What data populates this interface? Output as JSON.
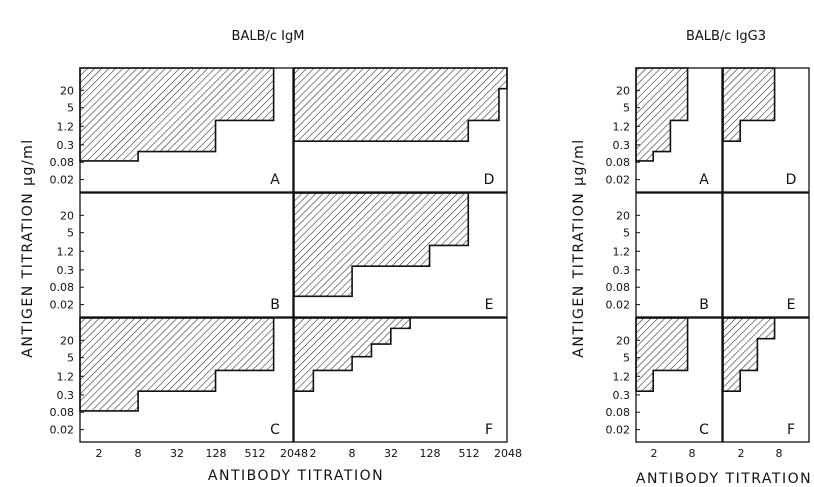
{
  "chart_data": [
    {
      "type": "step-area-grid",
      "title": "BALB/c IgM",
      "xlabel": "ANTIBODY TITRATION",
      "ylabel": "ANTIGEN TITRATION μg/ml",
      "x_ticks": [
        "2",
        "8",
        "32",
        "128",
        "512",
        "2048"
      ],
      "y_ticks": [
        "20",
        "5",
        "1.2",
        "0.3",
        "0.08",
        "0.02"
      ],
      "x_min": 1,
      "x_max": 2048,
      "y_scale": "log",
      "panels": [
        {
          "label": "A",
          "steps": [
            [
              8,
              0.08
            ],
            [
              128,
              0.15
            ],
            [
              1024,
              1.2
            ]
          ]
        },
        {
          "label": "D",
          "steps": [
            [
              512,
              0.3
            ],
            [
              1536,
              1.2
            ],
            [
              2048,
              10
            ]
          ]
        },
        {
          "label": "B",
          "steps": []
        },
        {
          "label": "E",
          "steps": [
            [
              8,
              0.04
            ],
            [
              128,
              0.3
            ],
            [
              512,
              1.2
            ]
          ]
        },
        {
          "label": "C",
          "steps": [
            [
              8,
              0.08
            ],
            [
              128,
              0.3
            ],
            [
              1024,
              1.2
            ]
          ]
        },
        {
          "label": "F",
          "steps": [
            [
              2,
              0.3
            ],
            [
              8,
              1.2
            ],
            [
              16,
              3
            ],
            [
              32,
              7
            ],
            [
              64,
              20
            ]
          ]
        }
      ]
    },
    {
      "type": "step-area-grid",
      "title": "BALB/c IgG3",
      "xlabel": "ANTIBODY TITRATION",
      "ylabel": "ANTIGEN TITRATION μg/ml",
      "x_ticks": [
        "2",
        "8"
      ],
      "y_ticks": [
        "20",
        "5",
        "1.2",
        "0.3",
        "0.08",
        "0.02"
      ],
      "x_min": 1,
      "x_max": 32,
      "y_scale": "log",
      "panels": [
        {
          "label": "A",
          "steps": [
            [
              2,
              0.08
            ],
            [
              4,
              0.15
            ],
            [
              8,
              1.2
            ]
          ]
        },
        {
          "label": "D",
          "steps": [
            [
              2,
              0.3
            ],
            [
              8,
              1.2
            ]
          ]
        },
        {
          "label": "B",
          "steps": []
        },
        {
          "label": "E",
          "steps": []
        },
        {
          "label": "C",
          "steps": [
            [
              2,
              0.3
            ],
            [
              8,
              1.2
            ]
          ]
        },
        {
          "label": "F",
          "steps": [
            [
              2,
              0.3
            ],
            [
              4,
              1.2
            ],
            [
              8,
              10
            ]
          ]
        }
      ]
    }
  ]
}
